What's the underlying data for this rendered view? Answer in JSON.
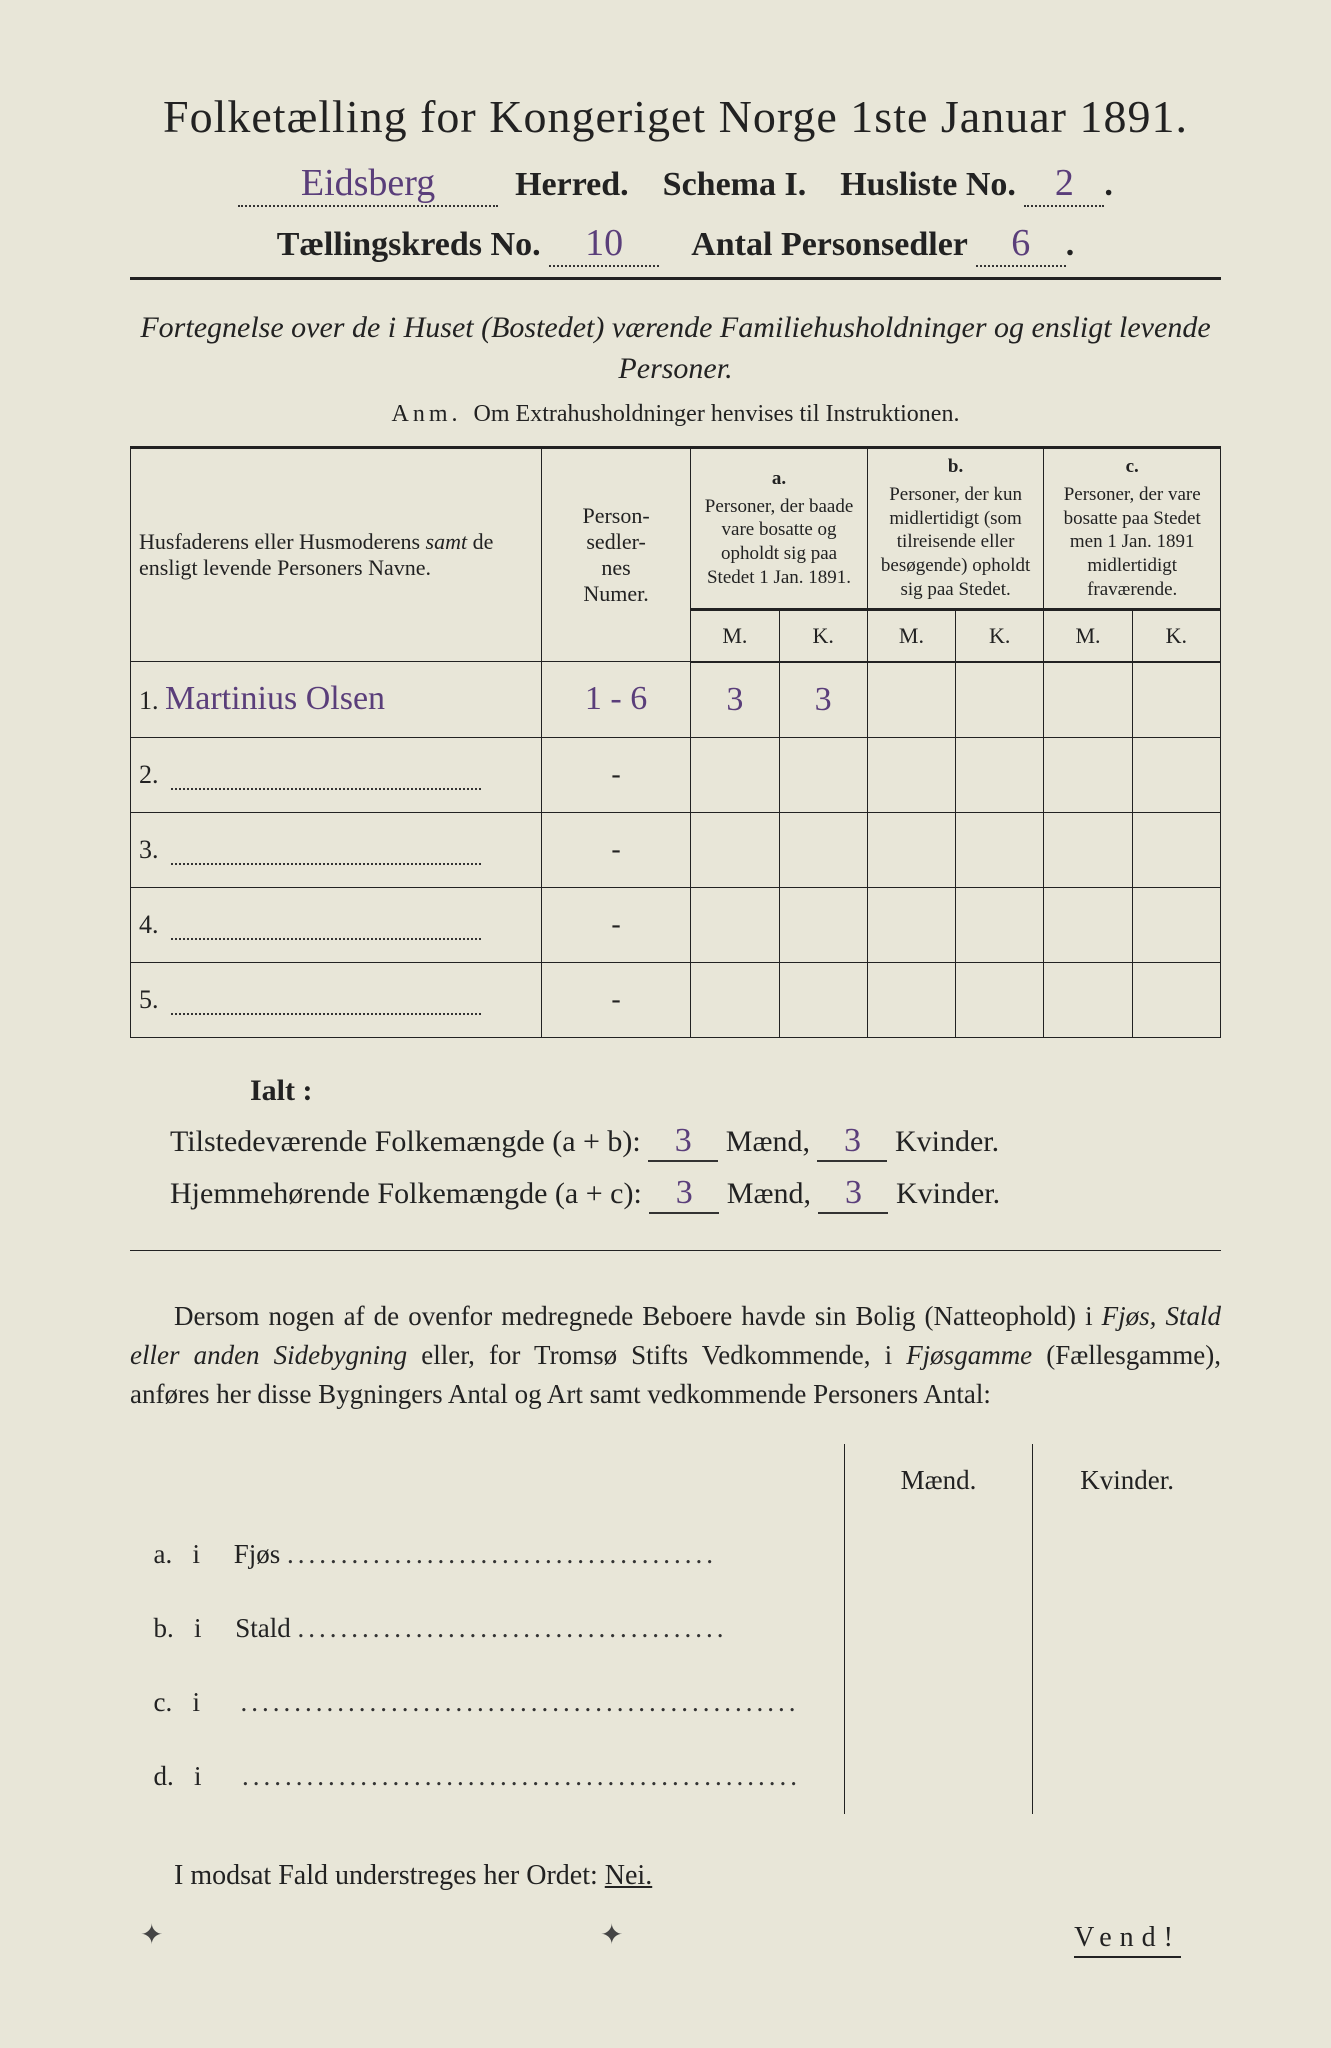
{
  "header": {
    "title": "Folketælling for Kongeriget Norge 1ste Januar 1891.",
    "herred_value": "Eidsberg",
    "herred_label": "Herred.",
    "schema_label": "Schema I.",
    "husliste_label": "Husliste No.",
    "husliste_value": "2",
    "kreds_label": "Tællingskreds No.",
    "kreds_value": "10",
    "antal_label": "Antal Personsedler",
    "antal_value": "6"
  },
  "subtitle": "Fortegnelse over de i Huset (Bostedet) værende Familiehusholdninger og ensligt levende Personer.",
  "anm": {
    "label": "Anm.",
    "text": "Om Extrahusholdninger henvises til Instruktionen."
  },
  "table": {
    "col_name": "Husfaderens eller Husmoderens samt de ensligt levende Personers Navne.",
    "col_num": "Person-\nsedler-\nnes\nNumer.",
    "group_a": {
      "letter": "a.",
      "text": "Personer, der baade vare bosatte og opholdt sig paa Stedet 1 Jan. 1891."
    },
    "group_b": {
      "letter": "b.",
      "text": "Personer, der kun midlertidigt (som tilreisende eller besøgende) opholdt sig paa Stedet."
    },
    "group_c": {
      "letter": "c.",
      "text": "Personer, der vare bosatte paa Stedet men 1 Jan. 1891 midlertidigt fraværende."
    },
    "mk_m": "M.",
    "mk_k": "K.",
    "rows": [
      {
        "n": "1.",
        "name": "Martinius Olsen",
        "num": "1 - 6",
        "a_m": "3",
        "a_k": "3",
        "b_m": "",
        "b_k": "",
        "c_m": "",
        "c_k": ""
      },
      {
        "n": "2.",
        "name": "",
        "num": "-",
        "a_m": "",
        "a_k": "",
        "b_m": "",
        "b_k": "",
        "c_m": "",
        "c_k": ""
      },
      {
        "n": "3.",
        "name": "",
        "num": "-",
        "a_m": "",
        "a_k": "",
        "b_m": "",
        "b_k": "",
        "c_m": "",
        "c_k": ""
      },
      {
        "n": "4.",
        "name": "",
        "num": "-",
        "a_m": "",
        "a_k": "",
        "b_m": "",
        "b_k": "",
        "c_m": "",
        "c_k": ""
      },
      {
        "n": "5.",
        "name": "",
        "num": "-",
        "a_m": "",
        "a_k": "",
        "b_m": "",
        "b_k": "",
        "c_m": "",
        "c_k": ""
      }
    ]
  },
  "sums": {
    "ialt": "Ialt :",
    "line1_label": "Tilstedeværende Folkemængde (a + b):",
    "line2_label": "Hjemmehørende Folkemængde (a + c):",
    "maend": "Mænd,",
    "kvinder": "Kvinder.",
    "ab_m": "3",
    "ab_k": "3",
    "ac_m": "3",
    "ac_k": "3"
  },
  "para": "Dersom nogen af de ovenfor medregnede Beboere havde sin Bolig (Natteophold) i Fjøs, Stald eller anden Sidebygning eller, for Tromsø Stifts Vedkommende, i Fjøsgamme (Fællesgamme), anføres her disse Bygningers Antal og Art samt vedkommende Personers Antal:",
  "bld": {
    "maend": "Mænd.",
    "kvinder": "Kvinder.",
    "rows": [
      {
        "k": "a.",
        "i": "i",
        "t": "Fjøs"
      },
      {
        "k": "b.",
        "i": "i",
        "t": "Stald"
      },
      {
        "k": "c.",
        "i": "i",
        "t": ""
      },
      {
        "k": "d.",
        "i": "i",
        "t": ""
      }
    ]
  },
  "nei": {
    "pre": "I modsat Fald understreges her Ordet: ",
    "word": "Nei."
  },
  "vend": "Vend!",
  "colors": {
    "paper": "#e8e6d8",
    "ink": "#222222",
    "handwriting": "#5a3e7a",
    "background": "#2a2a2a"
  }
}
